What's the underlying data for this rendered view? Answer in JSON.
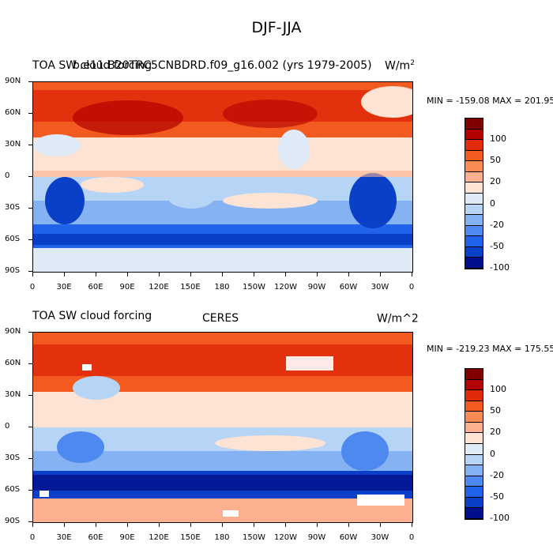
{
  "title": "DJF-JJA",
  "panels": [
    {
      "left_label": "TOA SW cloud forcing",
      "overlap_label": "b.e11.B20TRC5CNBDRD.f09_g16.002 (yrs 1979-2005)",
      "center_label": "",
      "units_label": "W/m",
      "units_sup": "2",
      "stats": "MIN = -159.08 MAX = 201.95"
    },
    {
      "left_label": "TOA SW cloud forcing",
      "overlap_label": "",
      "center_label": "CERES",
      "units_label": "W/m^2",
      "units_sup": "",
      "stats": "MIN = -219.23 MAX = 175.55"
    }
  ],
  "lat_ticks": [
    "90N",
    "60N",
    "30N",
    "0",
    "30S",
    "60S",
    "90S"
  ],
  "lon_ticks": [
    "0",
    "30E",
    "60E",
    "90E",
    "120E",
    "150E",
    "180",
    "150W",
    "120W",
    "90W",
    "60W",
    "30W",
    "0"
  ],
  "colorbar": {
    "colors": [
      "#800000",
      "#b30000",
      "#e02a0a",
      "#f35a20",
      "#fb8b55",
      "#fcb090",
      "#fde3d3",
      "#deebf7",
      "#b6d4f5",
      "#84b2f2",
      "#4d89ee",
      "#2063e8",
      "#0a3fc8",
      "#00108c"
    ],
    "tick_labels": [
      "100",
      "50",
      "20",
      "0",
      "-20",
      "-50",
      "-100"
    ]
  },
  "color_scale": "diverging red (positive) to blue (negative)"
}
